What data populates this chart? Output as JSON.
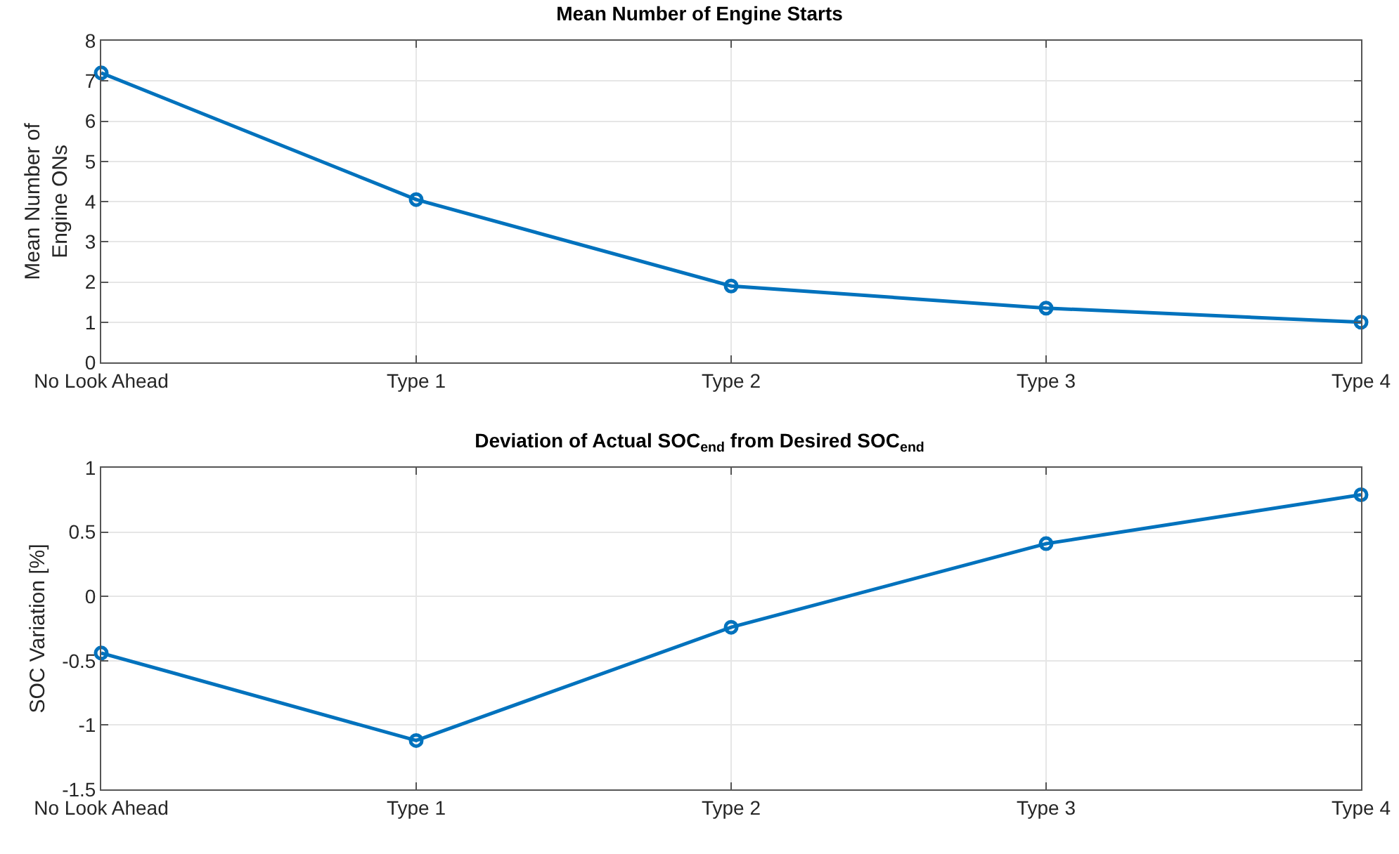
{
  "chart_data": [
    {
      "type": "line",
      "title": "Mean Number of Engine Starts",
      "ylabel": "Mean Number of\nEngine ONs",
      "categories": [
        "No Look Ahead",
        "Type 1",
        "Type 2",
        "Type 3",
        "Type 4"
      ],
      "series": [
        {
          "color": "#0072bd",
          "values": [
            7.2,
            4.05,
            1.9,
            1.35,
            1.0
          ]
        }
      ],
      "ylim": [
        0,
        8
      ],
      "yticks": [
        0,
        1,
        2,
        3,
        4,
        5,
        6,
        7,
        8
      ],
      "grid": true,
      "marker": "circle",
      "line_style": "solid"
    },
    {
      "type": "line",
      "title": "Deviation of Actual SOC$_{end}$ from Desired SOC$_{end}$",
      "ylabel": "SOC Variation [%]",
      "categories": [
        "No Look Ahead",
        "Type 1",
        "Type 2",
        "Type 3",
        "Type 4"
      ],
      "series": [
        {
          "color": "#0072bd",
          "values": [
            -0.44,
            -1.12,
            -0.24,
            0.41,
            0.79
          ]
        }
      ],
      "ylim": [
        -1.5,
        1
      ],
      "yticks": [
        -1.5,
        -1,
        -0.5,
        0,
        0.5,
        1
      ],
      "grid": true,
      "marker": "circle",
      "line_style": "solid"
    }
  ]
}
